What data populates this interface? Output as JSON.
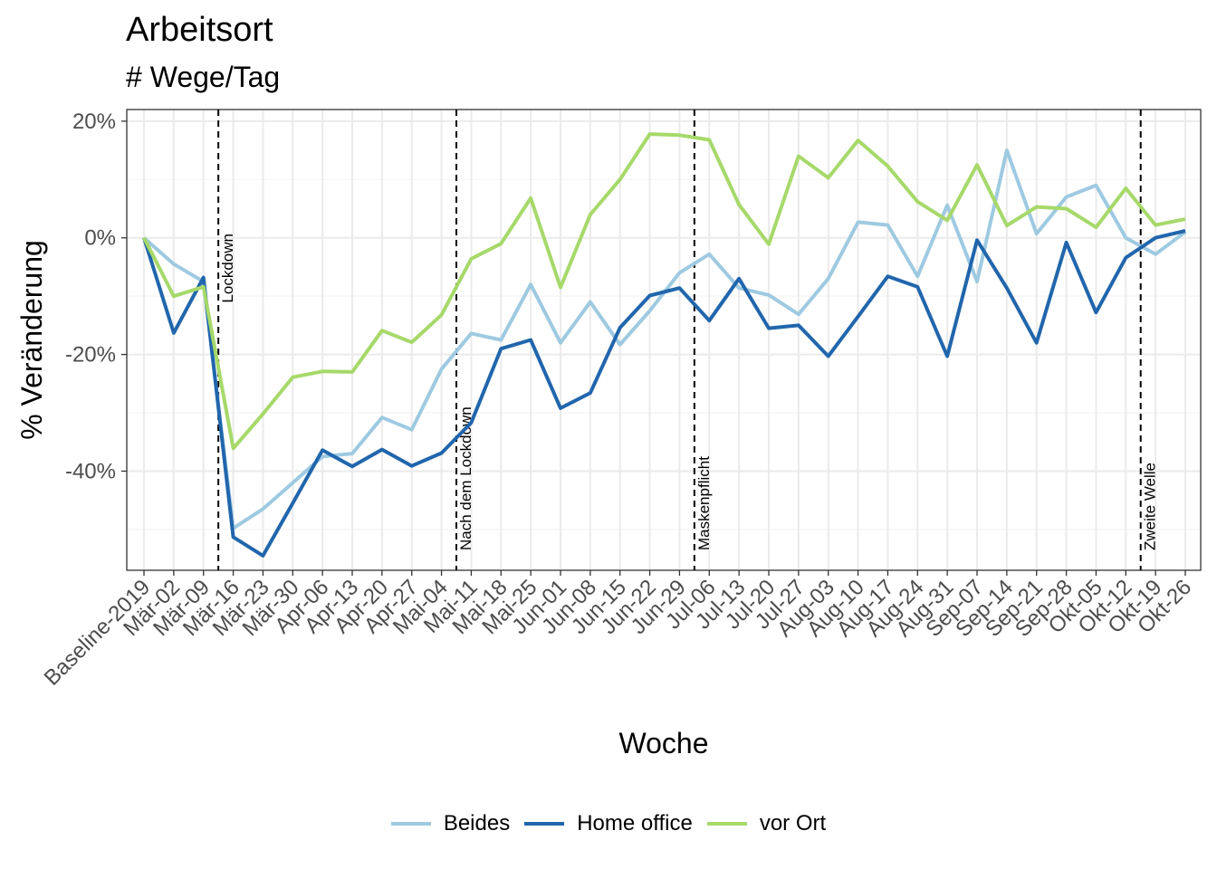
{
  "chart_data": {
    "type": "line",
    "title": "Arbeitsort",
    "subtitle": "# Wege/Tag",
    "xlabel": "Woche",
    "ylabel": "% Veränderung",
    "ylim": [
      -57,
      22
    ],
    "yticks": [
      20,
      0,
      -20,
      -40
    ],
    "ytick_labels": [
      "20%",
      "0%",
      "-20%",
      "-40%"
    ],
    "grid": true,
    "legend_position": "bottom",
    "categories": [
      "Baseline-2019",
      "Mär-02",
      "Mär-09",
      "Mär-16",
      "Mär-23",
      "Mär-30",
      "Apr-06",
      "Apr-13",
      "Apr-20",
      "Apr-27",
      "Mai-04",
      "Mai-11",
      "Mai-18",
      "Mai-25",
      "Jun-01",
      "Jun-08",
      "Jun-15",
      "Jun-22",
      "Jun-29",
      "Jul-06",
      "Jul-13",
      "Jul-20",
      "Jul-27",
      "Aug-03",
      "Aug-10",
      "Aug-17",
      "Aug-24",
      "Aug-31",
      "Sep-07",
      "Sep-14",
      "Sep-21",
      "Sep-28",
      "Okt-05",
      "Okt-12",
      "Okt-19",
      "Okt-26"
    ],
    "series": [
      {
        "name": "Beides",
        "color": "#9ecae1",
        "values": [
          0,
          -4.5,
          -7.5,
          -49.8,
          -46.5,
          -42,
          -37.5,
          -37,
          -30.8,
          -32.9,
          -22.5,
          -16.4,
          -17.5,
          -8,
          -18,
          -11,
          -18.3,
          -12.5,
          -6,
          -2.8,
          -8.6,
          -9.8,
          -13.1,
          -7,
          2.7,
          2.2,
          -6.6,
          5.6,
          -7.5,
          15,
          0.7,
          7,
          9,
          0,
          -2.8,
          1
        ]
      },
      {
        "name": "Home office",
        "color": "#2166ac",
        "values": [
          0,
          -16.3,
          -6.8,
          -51.3,
          -54.5,
          -45.5,
          -36.4,
          -39.2,
          -36.3,
          -39.1,
          -36.9,
          -31.7,
          -19,
          -17.5,
          -29.2,
          -26.6,
          -15.4,
          -9.9,
          -8.6,
          -14.2,
          -7,
          -15.5,
          -15,
          -20.3,
          -13.5,
          -6.6,
          -8.4,
          -20.3,
          -0.4,
          -8.6,
          -18,
          -0.8,
          -12.8,
          -3.4,
          0,
          1.2
        ]
      },
      {
        "name": "vor Ort",
        "color": "#a6d96a",
        "values": [
          0,
          -10,
          -8.4,
          -36.1,
          -30.2,
          -23.9,
          -22.9,
          -23,
          -15.9,
          -17.9,
          -13.2,
          -3.6,
          -1,
          6.8,
          -8.5,
          4,
          10,
          17.8,
          17.6,
          16.8,
          5.7,
          -1.1,
          14,
          10.3,
          16.7,
          12.3,
          6.2,
          3,
          12.5,
          2.1,
          5.3,
          5,
          1.8,
          8.5,
          2.2,
          3.2
        ]
      }
    ],
    "vlines": [
      {
        "after_category": "Mär-09",
        "offset": 0.5,
        "label": "Lockdown"
      },
      {
        "after_category": "Mai-04",
        "offset": 0.5,
        "label": "Nach dem Lockdown"
      },
      {
        "after_category": "Jun-29",
        "offset": 0.5,
        "label": "Maskenpflicht"
      },
      {
        "after_category": "Okt-12",
        "offset": 0.5,
        "label": "Zweite Welle"
      }
    ]
  }
}
